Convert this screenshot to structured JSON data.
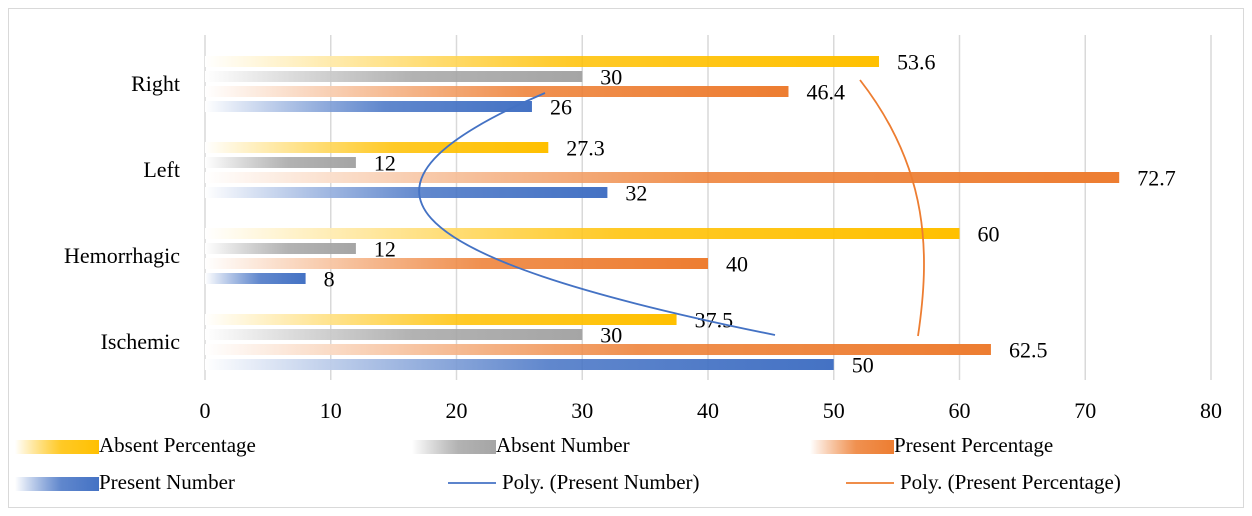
{
  "chart_data": {
    "type": "bar",
    "orientation": "horizontal",
    "categories": [
      "Right",
      "Left",
      "Hemorrhagic",
      "Ischemic"
    ],
    "series": [
      {
        "name": "Absent Percentage",
        "values": [
          53.6,
          27.3,
          60,
          37.5
        ],
        "labels": [
          "53.6",
          "27.3",
          "60",
          "37.5"
        ],
        "color": "#ffc000"
      },
      {
        "name": "Absent Number",
        "values": [
          30,
          12,
          12,
          30
        ],
        "labels": [
          "30",
          "12",
          "12",
          "30"
        ],
        "color": "#a5a5a5"
      },
      {
        "name": "Present Percentage",
        "values": [
          46.4,
          72.7,
          40,
          62.5
        ],
        "labels": [
          "46.4",
          "72.7",
          "40",
          "62.5"
        ],
        "color": "#ed7d31"
      },
      {
        "name": "Present Number",
        "values": [
          26,
          32,
          8,
          50
        ],
        "labels": [
          "26",
          "32",
          "8",
          "50"
        ],
        "color": "#4472c4"
      }
    ],
    "trendlines": [
      {
        "name": "Poly. (Present Number)",
        "type": "polynomial",
        "color": "#4472c4"
      },
      {
        "name": "Poly. (Present Percentage)",
        "type": "polynomial",
        "color": "#ed7d31"
      }
    ],
    "xlim": [
      0,
      80
    ],
    "xticks": [
      "0",
      "10",
      "20",
      "30",
      "40",
      "50",
      "60",
      "70",
      "80"
    ],
    "grid": true,
    "legend_position": "bottom",
    "title": "",
    "xlabel": "",
    "ylabel": ""
  }
}
